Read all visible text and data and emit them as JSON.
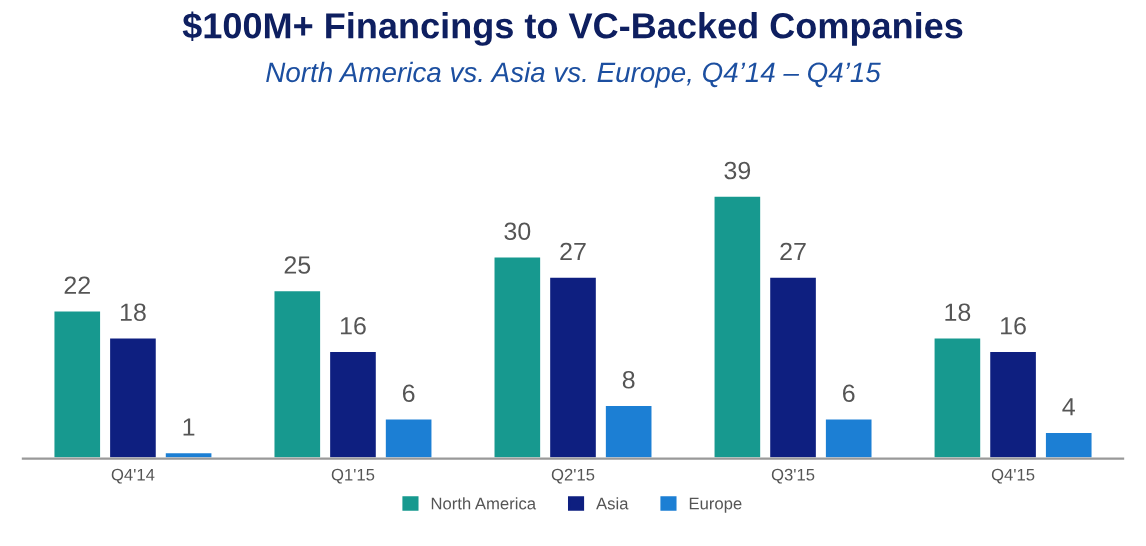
{
  "chart_data": {
    "type": "bar",
    "title": "$100M+ Financings to VC-Backed Companies",
    "subtitle": "North America vs. Asia vs. Europe, Q4’14 – Q4’15",
    "categories": [
      "Q4'14",
      "Q1'15",
      "Q2'15",
      "Q3'15",
      "Q4'15"
    ],
    "series": [
      {
        "name": "North America",
        "color": "#17998f",
        "values": [
          22,
          25,
          30,
          39,
          18
        ]
      },
      {
        "name": "Asia",
        "color": "#0e1f80",
        "values": [
          18,
          16,
          27,
          27,
          16
        ]
      },
      {
        "name": "Europe",
        "color": "#1c7fd4",
        "values": [
          1,
          6,
          8,
          6,
          4
        ]
      }
    ],
    "data_labels": true,
    "legend": "bottom",
    "grid": false
  }
}
